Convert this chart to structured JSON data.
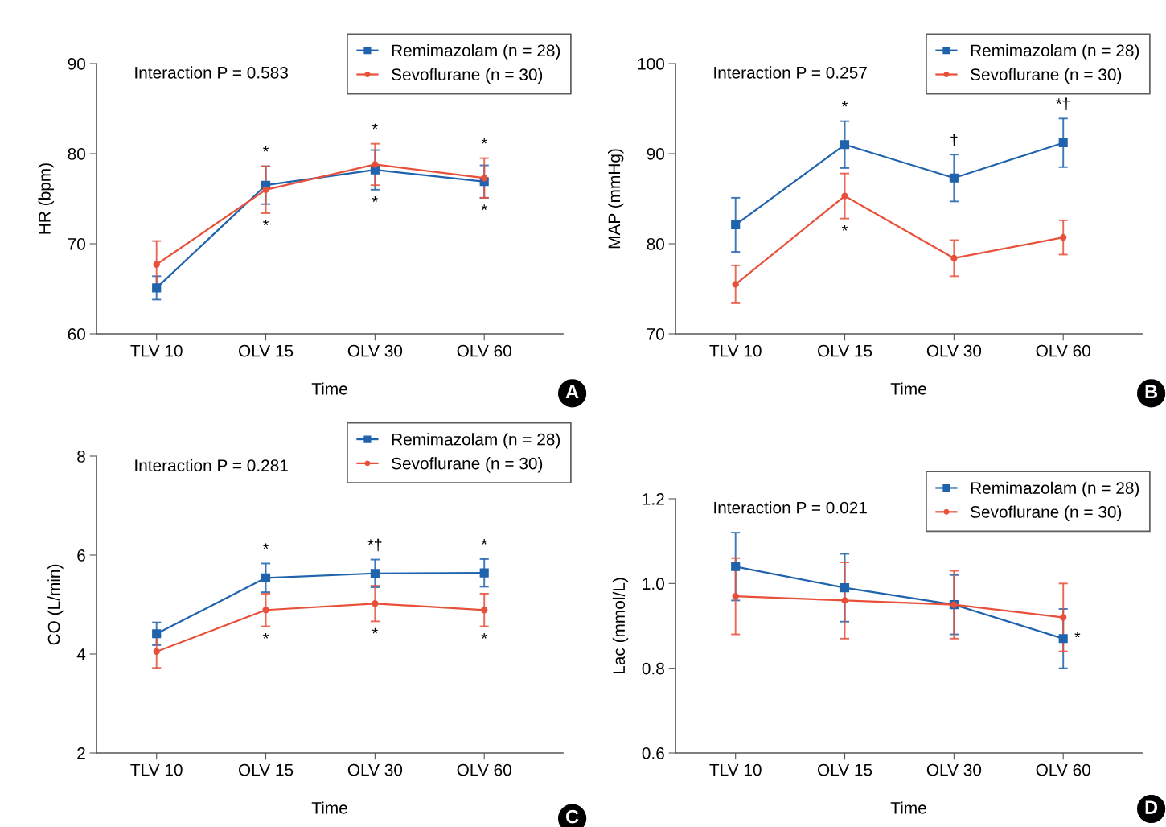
{
  "chart_data": [
    {
      "type": "line",
      "xlabel": "Time",
      "ylabel": "HR (bpm)",
      "categories": [
        "TLV 10",
        "OLV 15",
        "OLV 30",
        "OLV 60"
      ],
      "ylim": [
        60,
        90
      ],
      "yticks": [
        60,
        70,
        80,
        90
      ],
      "legend": "top right",
      "grid": false,
      "series": [
        {
          "name": "Remimazolam (n = 28)",
          "color": "#1f63ad",
          "marker": "square",
          "values": [
            65.1,
            76.5,
            78.2,
            76.9
          ],
          "errors": [
            1.3,
            2.1,
            2.2,
            1.8
          ]
        },
        {
          "name": "Sevoflurane (n = 30)",
          "color": "#e8503a",
          "marker": "circle",
          "values": [
            67.7,
            76.0,
            78.8,
            77.3
          ],
          "errors": [
            2.6,
            2.6,
            2.3,
            2.2
          ]
        }
      ],
      "annotations": [
        "Interaction P = 0.583",
        "A",
        {
          "text": "*",
          "x": "OLV 15",
          "y": 78.6
        },
        {
          "text": "*",
          "x": "OLV 15",
          "y": 73.4
        },
        {
          "text": "*",
          "x": "OLV 30",
          "y": 81.1
        },
        {
          "text": "*",
          "x": "OLV 30",
          "y": 76.0
        },
        {
          "text": "*",
          "x": "OLV 60",
          "y": 79.5
        },
        {
          "text": "*",
          "x": "OLV 60",
          "y": 75.1
        }
      ]
    },
    {
      "type": "line",
      "xlabel": "Time",
      "ylabel": "MAP (mmHg)",
      "categories": [
        "TLV 10",
        "OLV 15",
        "OLV 30",
        "OLV 60"
      ],
      "ylim": [
        70,
        100
      ],
      "yticks": [
        70,
        80,
        90,
        100
      ],
      "legend": "top right",
      "grid": false,
      "series": [
        {
          "name": "Remimazolam (n = 28)",
          "color": "#1f63ad",
          "marker": "square",
          "values": [
            82.1,
            91.0,
            87.3,
            91.2
          ],
          "errors": [
            3.0,
            2.6,
            2.6,
            2.7
          ]
        },
        {
          "name": "Sevoflurane (n = 30)",
          "color": "#e8503a",
          "marker": "circle",
          "values": [
            75.5,
            85.3,
            78.4,
            80.7
          ],
          "errors": [
            2.1,
            2.5,
            2.0,
            1.9
          ]
        }
      ],
      "annotations": [
        "Interaction P = 0.257",
        "B",
        {
          "text": "*",
          "x": "OLV 15",
          "y": 93.6
        },
        {
          "text": "*",
          "x": "OLV 15",
          "y": 82.8
        },
        {
          "text": "†",
          "x": "OLV 30",
          "y": 89.9
        },
        {
          "text": "*†",
          "x": "OLV 60",
          "y": 93.9
        }
      ]
    },
    {
      "type": "line",
      "xlabel": "Time",
      "ylabel": "CO (L/min)",
      "categories": [
        "TLV 10",
        "OLV 15",
        "OLV 30",
        "OLV 60"
      ],
      "ylim": [
        2,
        8
      ],
      "yticks": [
        2,
        4,
        6,
        8
      ],
      "legend": "top right",
      "grid": false,
      "series": [
        {
          "name": "Remimazolam (n = 28)",
          "color": "#1f63ad",
          "marker": "square",
          "values": [
            4.41,
            5.54,
            5.63,
            5.64
          ],
          "errors": [
            0.23,
            0.29,
            0.28,
            0.28
          ]
        },
        {
          "name": "Sevoflurane (n = 30)",
          "color": "#e8503a",
          "marker": "circle",
          "values": [
            4.05,
            4.89,
            5.02,
            4.89
          ],
          "errors": [
            0.33,
            0.33,
            0.36,
            0.33
          ]
        }
      ],
      "annotations": [
        "Interaction P = 0.281",
        "C",
        {
          "text": "*",
          "x": "OLV 15",
          "y": 5.83
        },
        {
          "text": "*",
          "x": "OLV 15",
          "y": 4.56
        },
        {
          "text": "*†",
          "x": "OLV 30",
          "y": 5.91
        },
        {
          "text": "*",
          "x": "OLV 30",
          "y": 4.66
        },
        {
          "text": "*",
          "x": "OLV 60",
          "y": 5.92
        },
        {
          "text": "*",
          "x": "OLV 60",
          "y": 4.56
        }
      ]
    },
    {
      "type": "line",
      "xlabel": "Time",
      "ylabel": "Lac (mmol/L)",
      "categories": [
        "TLV 10",
        "OLV 15",
        "OLV 30",
        "OLV 60"
      ],
      "ylim": [
        0.6,
        1.2
      ],
      "yticks": [
        {
          "value": 0.6,
          "label": "0.6"
        },
        {
          "value": 0.8,
          "label": "0.8"
        },
        {
          "value": 1.0,
          "label": "1.0"
        },
        {
          "value": 1.2,
          "label": "1.2"
        }
      ],
      "legend": "top right",
      "grid": false,
      "series": [
        {
          "name": "Remimazolam (n = 28)",
          "color": "#1f63ad",
          "marker": "square",
          "values": [
            1.04,
            0.99,
            0.95,
            0.87
          ],
          "errors": [
            0.08,
            0.08,
            0.07,
            0.07
          ]
        },
        {
          "name": "Sevoflurane (n = 30)",
          "color": "#e8503a",
          "marker": "circle",
          "values": [
            0.97,
            0.96,
            0.95,
            0.92
          ],
          "errors": [
            0.09,
            0.09,
            0.08,
            0.08
          ]
        }
      ],
      "annotations": [
        "Interaction P = 0.021",
        "D",
        {
          "text": "*",
          "x": "OLV 60",
          "y": 0.87
        }
      ]
    }
  ]
}
